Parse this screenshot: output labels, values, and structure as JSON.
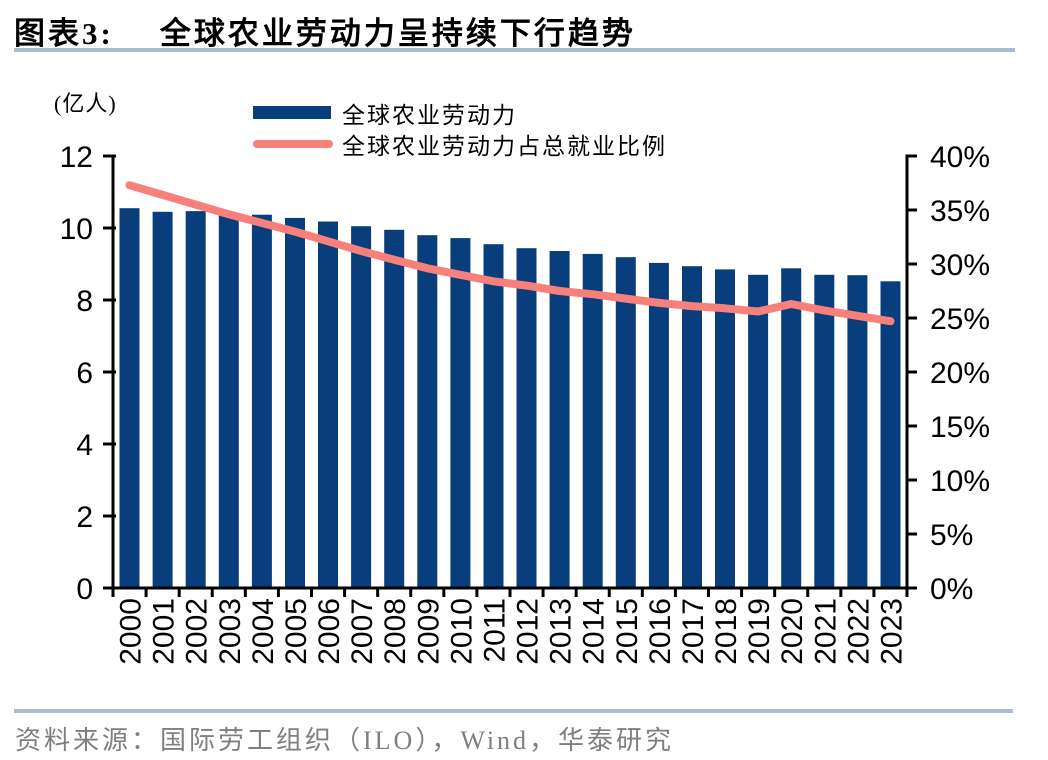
{
  "header": {
    "label": "图表3:",
    "title": "全球农业劳动力呈持续下行趋势"
  },
  "footer": {
    "source": "资料来源：国际劳工组织（ILO），Wind，华泰研究"
  },
  "colors": {
    "bar": "#093e7d",
    "line": "#f8807b",
    "rule": "#a9bcd2",
    "axis": "#000000",
    "source_text": "#7f7f7f"
  },
  "chart_data": {
    "type": "bar",
    "title": "全球农业劳动力呈持续下行趋势",
    "legend_position": "top",
    "grid": false,
    "categories": [
      "2000",
      "2001",
      "2002",
      "2003",
      "2004",
      "2005",
      "2006",
      "2007",
      "2008",
      "2009",
      "2010",
      "2011",
      "2012",
      "2013",
      "2014",
      "2015",
      "2016",
      "2017",
      "2018",
      "2019",
      "2020",
      "2021",
      "2022",
      "2023"
    ],
    "series": [
      {
        "name": "全球农业劳动力",
        "type": "bar",
        "axis": "left",
        "unit": "亿人",
        "values": [
          10.55,
          10.45,
          10.47,
          10.4,
          10.37,
          10.28,
          10.18,
          10.05,
          9.95,
          9.8,
          9.72,
          9.55,
          9.44,
          9.36,
          9.28,
          9.19,
          9.03,
          8.94,
          8.85,
          8.7,
          8.88,
          8.7,
          8.69,
          8.52
        ]
      },
      {
        "name": "全球农业劳动力占总就业比例",
        "type": "line",
        "axis": "right",
        "unit": "%",
        "values": [
          37.3,
          36.4,
          35.5,
          34.6,
          33.8,
          33.0,
          32.1,
          31.2,
          30.4,
          29.6,
          29.0,
          28.4,
          28.0,
          27.5,
          27.2,
          26.8,
          26.4,
          26.1,
          25.9,
          25.6,
          26.3,
          25.7,
          25.2,
          24.7
        ]
      }
    ],
    "left_axis": {
      "unit": "(亿人)",
      "min": 0,
      "max": 12,
      "step": 2,
      "ticks": [
        "0",
        "2",
        "4",
        "6",
        "8",
        "10",
        "12"
      ]
    },
    "right_axis": {
      "min": 0,
      "max": 40,
      "step": 5,
      "ticks": [
        "0%",
        "5%",
        "10%",
        "15%",
        "20%",
        "25%",
        "30%",
        "35%",
        "40%"
      ]
    }
  }
}
